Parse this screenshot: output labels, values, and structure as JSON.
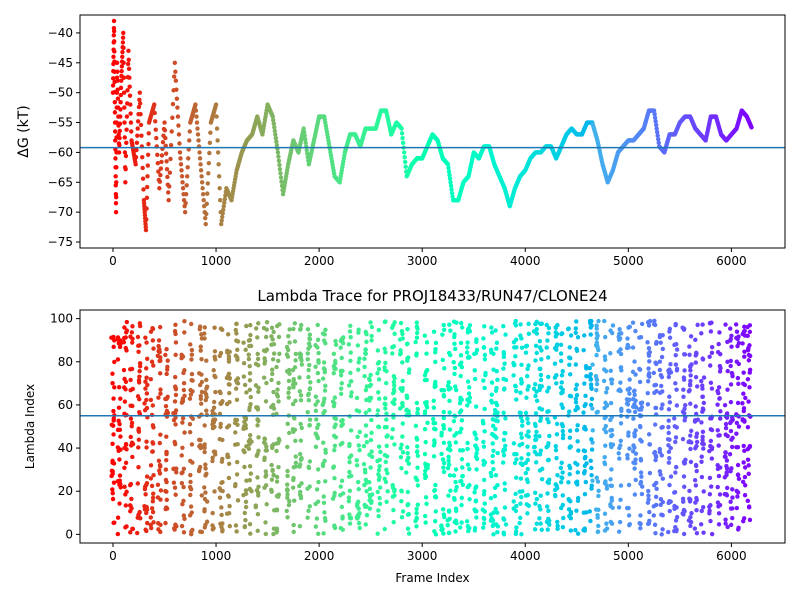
{
  "chart_data": [
    {
      "type": "scatter",
      "title": "",
      "xlabel": "",
      "ylabel": "ΔG (kT)",
      "xlim": [
        -320,
        6520
      ],
      "ylim": [
        -76,
        -37
      ],
      "xticks": [
        0,
        1000,
        2000,
        3000,
        4000,
        5000,
        6000
      ],
      "yticks": [
        -75,
        -70,
        -65,
        -60,
        -55,
        -50,
        -45,
        -40
      ],
      "hline": -59.2,
      "hline_color": "#1f77b4",
      "color_scale": "rainbow (red at frame 0 to violet at frame ~6200)",
      "series": [
        {
          "points_approx": [
            [
              0,
              -50
            ],
            [
              10,
              -38
            ],
            [
              20,
              -55
            ],
            [
              30,
              -70
            ],
            [
              40,
              -45
            ],
            [
              60,
              -60
            ],
            [
              80,
              -48
            ],
            [
              100,
              -40
            ],
            [
              120,
              -65
            ],
            [
              150,
              -43
            ],
            [
              180,
              -58
            ],
            [
              220,
              -62
            ],
            [
              260,
              -50
            ],
            [
              300,
              -68
            ],
            [
              320,
              -73
            ],
            [
              350,
              -55
            ],
            [
              400,
              -52
            ],
            [
              450,
              -66
            ],
            [
              500,
              -55
            ],
            [
              540,
              -68
            ],
            [
              600,
              -45
            ],
            [
              650,
              -60
            ],
            [
              700,
              -70
            ],
            [
              750,
              -55
            ],
            [
              800,
              -52
            ],
            [
              850,
              -62
            ],
            [
              900,
              -72
            ],
            [
              950,
              -55
            ],
            [
              1000,
              -52
            ],
            [
              1050,
              -72
            ],
            [
              1100,
              -66
            ],
            [
              1150,
              -68
            ],
            [
              1200,
              -63
            ],
            [
              1250,
              -60
            ],
            [
              1300,
              -58
            ],
            [
              1350,
              -57
            ],
            [
              1400,
              -54
            ],
            [
              1450,
              -57
            ],
            [
              1500,
              -52
            ],
            [
              1550,
              -54
            ],
            [
              1600,
              -60
            ],
            [
              1650,
              -67
            ],
            [
              1700,
              -62
            ],
            [
              1750,
              -58
            ],
            [
              1800,
              -60
            ],
            [
              1850,
              -56
            ],
            [
              1900,
              -62
            ],
            [
              1950,
              -58
            ],
            [
              2000,
              -54
            ],
            [
              2050,
              -54
            ],
            [
              2100,
              -59
            ],
            [
              2150,
              -64
            ],
            [
              2200,
              -65
            ],
            [
              2250,
              -60
            ],
            [
              2300,
              -57
            ],
            [
              2350,
              -57
            ],
            [
              2400,
              -59
            ],
            [
              2450,
              -56
            ],
            [
              2500,
              -56
            ],
            [
              2550,
              -56
            ],
            [
              2600,
              -53
            ],
            [
              2650,
              -53
            ],
            [
              2700,
              -57
            ],
            [
              2750,
              -55
            ],
            [
              2800,
              -56
            ],
            [
              2850,
              -64
            ],
            [
              2900,
              -62
            ],
            [
              2950,
              -61
            ],
            [
              3000,
              -61
            ],
            [
              3050,
              -59
            ],
            [
              3100,
              -57
            ],
            [
              3150,
              -58
            ],
            [
              3200,
              -61
            ],
            [
              3250,
              -62
            ],
            [
              3300,
              -68
            ],
            [
              3350,
              -68
            ],
            [
              3400,
              -65
            ],
            [
              3450,
              -64
            ],
            [
              3500,
              -60
            ],
            [
              3550,
              -61
            ],
            [
              3600,
              -59
            ],
            [
              3650,
              -59
            ],
            [
              3700,
              -62
            ],
            [
              3750,
              -64
            ],
            [
              3800,
              -66
            ],
            [
              3850,
              -69
            ],
            [
              3900,
              -66
            ],
            [
              3950,
              -64
            ],
            [
              4000,
              -63
            ],
            [
              4050,
              -61
            ],
            [
              4100,
              -60
            ],
            [
              4150,
              -60
            ],
            [
              4200,
              -59
            ],
            [
              4250,
              -59
            ],
            [
              4300,
              -61
            ],
            [
              4350,
              -59
            ],
            [
              4400,
              -57
            ],
            [
              4450,
              -56
            ],
            [
              4500,
              -57
            ],
            [
              4550,
              -57
            ],
            [
              4600,
              -55
            ],
            [
              4650,
              -55
            ],
            [
              4700,
              -58
            ],
            [
              4750,
              -62
            ],
            [
              4800,
              -65
            ],
            [
              4850,
              -63
            ],
            [
              4900,
              -60
            ],
            [
              4950,
              -59
            ],
            [
              5000,
              -58
            ],
            [
              5050,
              -58
            ],
            [
              5100,
              -57
            ],
            [
              5150,
              -56
            ],
            [
              5200,
              -53
            ],
            [
              5250,
              -53
            ],
            [
              5300,
              -59
            ],
            [
              5350,
              -60
            ],
            [
              5400,
              -57
            ],
            [
              5450,
              -57
            ],
            [
              5500,
              -55
            ],
            [
              5550,
              -54
            ],
            [
              5600,
              -54
            ],
            [
              5650,
              -56
            ],
            [
              5700,
              -57
            ],
            [
              5750,
              -58
            ],
            [
              5800,
              -54
            ],
            [
              5850,
              -54
            ],
            [
              5900,
              -57
            ],
            [
              5950,
              -58
            ],
            [
              6000,
              -57
            ],
            [
              6050,
              -56
            ],
            [
              6100,
              -53
            ],
            [
              6150,
              -54
            ],
            [
              6200,
              -56
            ]
          ]
        }
      ]
    },
    {
      "type": "scatter",
      "title": "Lambda Trace for PROJ18433/RUN47/CLONE24",
      "xlabel": "Frame Index",
      "ylabel": "Lambda Index",
      "xlim": [
        -320,
        6520
      ],
      "ylim": [
        -4,
        104
      ],
      "xticks": [
        0,
        1000,
        2000,
        3000,
        4000,
        5000,
        6000
      ],
      "yticks": [
        0,
        20,
        40,
        60,
        80,
        100
      ],
      "hline": 55,
      "hline_color": "#1f77b4",
      "color_scale": "rainbow (red at frame 0 to violet at frame ~6200)",
      "series": [
        {
          "description_of_density": "dense vertical sweeps spanning lambda 0-99, roughly 60-80 sweeps across frames 0-6200",
          "sweep_frames_approx": [
            0,
            60,
            120,
            180,
            250,
            320,
            380,
            450,
            520,
            600,
            680,
            760,
            850,
            900,
            980,
            1050,
            1120,
            1200,
            1280,
            1330,
            1400,
            1480,
            1550,
            1600,
            1700,
            1760,
            1820,
            1900,
            1980,
            2050,
            2150,
            2220,
            2300,
            2380,
            2450,
            2500,
            2580,
            2650,
            2720,
            2800,
            2860,
            2950,
            3040,
            3120,
            3200,
            3260,
            3320,
            3380,
            3450,
            3520,
            3600,
            3680,
            3720,
            3800,
            3900,
            3960,
            4020,
            4100,
            4150,
            4220,
            4300,
            4360,
            4430,
            4500,
            4580,
            4640,
            4700,
            4780,
            4840,
            4920,
            5000,
            5060,
            5120,
            5200,
            5260,
            5320,
            5400,
            5460,
            5540,
            5600,
            5660,
            5720,
            5800,
            5880,
            5950,
            6000,
            6060,
            6120,
            6170
          ]
        }
      ]
    }
  ]
}
